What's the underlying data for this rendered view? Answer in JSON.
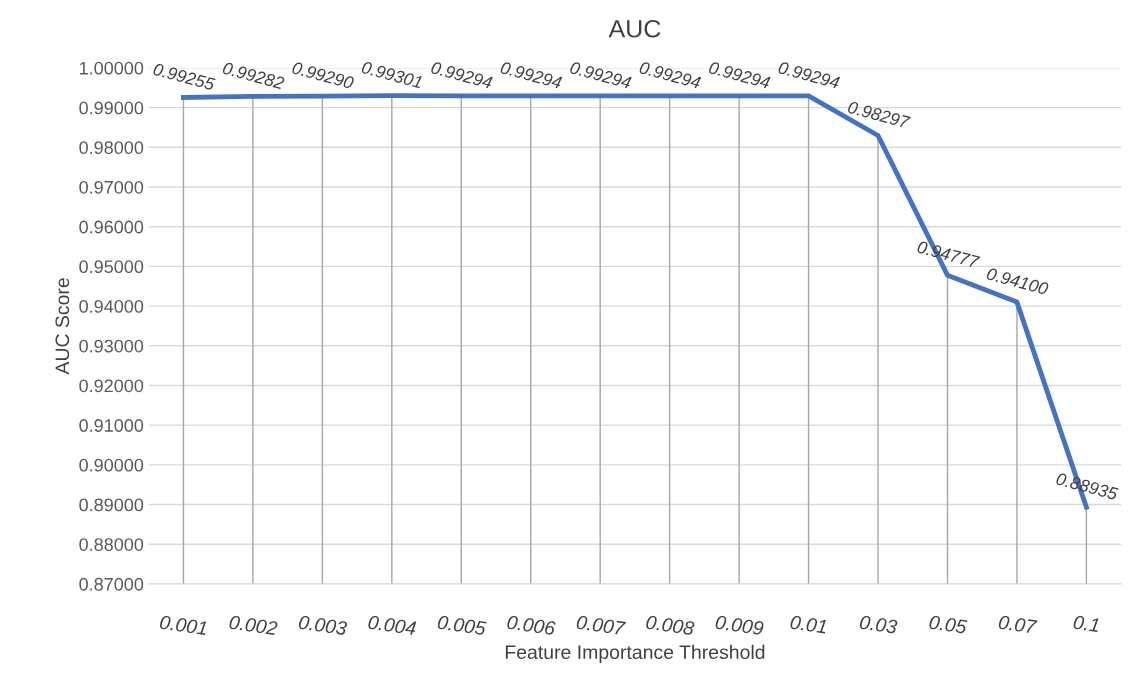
{
  "chart_data": {
    "type": "line",
    "title": "AUC",
    "xlabel": "Feature Importance Threshold",
    "ylabel": "AUC Score",
    "categories": [
      "0.001",
      "0.002",
      "0.003",
      "0.004",
      "0.005",
      "0.006",
      "0.007",
      "0.008",
      "0.009",
      "0.01",
      "0.03",
      "0.05",
      "0.07",
      "0.1"
    ],
    "series": [
      {
        "color": "#4472c4",
        "values": [
          0.99255,
          0.99282,
          0.9929,
          0.99301,
          0.99294,
          0.99294,
          0.99294,
          0.99294,
          0.99294,
          0.99294,
          0.98297,
          0.94777,
          0.941,
          0.88935
        ],
        "value_labels": [
          "0.99255",
          "0.99282",
          "0.99290",
          "0.99301",
          "0.99294",
          "0.99294",
          "0.99294",
          "0.99294",
          "0.99294",
          "0.99294",
          "0.98297",
          "0.94777",
          "0.94100",
          "0.88935"
        ]
      }
    ],
    "ylim": [
      0.87,
      1.0
    ],
    "yticks": [
      {
        "value": 0.87,
        "label": "0.87000"
      },
      {
        "value": 0.88,
        "label": "0.88000"
      },
      {
        "value": 0.89,
        "label": "0.89000"
      },
      {
        "value": 0.9,
        "label": "0.90000"
      },
      {
        "value": 0.91,
        "label": "0.91000"
      },
      {
        "value": 0.92,
        "label": "0.92000"
      },
      {
        "value": 0.93,
        "label": "0.93000"
      },
      {
        "value": 0.94,
        "label": "0.94000"
      },
      {
        "value": 0.95,
        "label": "0.95000"
      },
      {
        "value": 0.96,
        "label": "0.96000"
      },
      {
        "value": 0.97,
        "label": "0.97000"
      },
      {
        "value": 0.98,
        "label": "0.98000"
      },
      {
        "value": 0.99,
        "label": "0.99000"
      },
      {
        "value": 1.0,
        "label": "1.00000"
      }
    ],
    "grid": true,
    "marker": "none",
    "line_style": "solid"
  }
}
